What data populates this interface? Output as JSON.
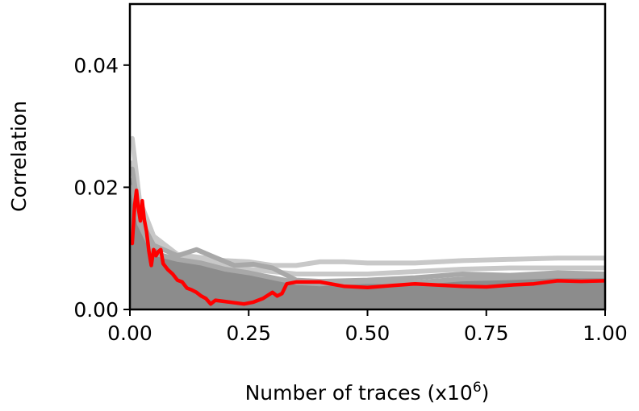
{
  "chart_data": {
    "type": "line",
    "title": "",
    "xlabel": "Number of traces (x10",
    "xlabel_sup": "6",
    "xlabel_close": ")",
    "ylabel": "Correlation",
    "xlim": [
      0.0,
      1.0
    ],
    "ylim": [
      0.0,
      0.05
    ],
    "xticks": [
      0.0,
      0.25,
      0.5,
      0.75,
      1.0
    ],
    "xtick_labels": [
      "0.00",
      "0.25",
      "0.50",
      "0.75",
      "1.00"
    ],
    "yticks": [
      0.0,
      0.02,
      0.04
    ],
    "ytick_labels": [
      "0.00",
      "0.02",
      "0.04"
    ],
    "grid": false,
    "colors": {
      "highlight": "#ff0000",
      "light_gray": "#c8c8c8",
      "mid_gray": "#a8a8a8",
      "band_fill": "#8c8c8c"
    },
    "series": [
      {
        "color": "#ff0000",
        "width": 4.5,
        "points": [
          [
            0.005,
            0.0108
          ],
          [
            0.01,
            0.017
          ],
          [
            0.014,
            0.0195
          ],
          [
            0.018,
            0.0165
          ],
          [
            0.022,
            0.0145
          ],
          [
            0.026,
            0.0178
          ],
          [
            0.03,
            0.0148
          ],
          [
            0.035,
            0.0128
          ],
          [
            0.04,
            0.0095
          ],
          [
            0.045,
            0.0072
          ],
          [
            0.05,
            0.0098
          ],
          [
            0.055,
            0.0088
          ],
          [
            0.06,
            0.0095
          ],
          [
            0.065,
            0.0098
          ],
          [
            0.07,
            0.0075
          ],
          [
            0.08,
            0.0065
          ],
          [
            0.09,
            0.0058
          ],
          [
            0.1,
            0.0048
          ],
          [
            0.11,
            0.0045
          ],
          [
            0.12,
            0.0035
          ],
          [
            0.13,
            0.0032
          ],
          [
            0.14,
            0.0028
          ],
          [
            0.15,
            0.0022
          ],
          [
            0.16,
            0.0018
          ],
          [
            0.17,
            0.0009
          ],
          [
            0.18,
            0.0015
          ],
          [
            0.2,
            0.0013
          ],
          [
            0.22,
            0.0011
          ],
          [
            0.24,
            0.0009
          ],
          [
            0.26,
            0.0012
          ],
          [
            0.28,
            0.0018
          ],
          [
            0.3,
            0.0028
          ],
          [
            0.31,
            0.0022
          ],
          [
            0.32,
            0.0026
          ],
          [
            0.33,
            0.0042
          ],
          [
            0.35,
            0.0045
          ],
          [
            0.4,
            0.0045
          ],
          [
            0.45,
            0.0038
          ],
          [
            0.5,
            0.0036
          ],
          [
            0.55,
            0.0039
          ],
          [
            0.6,
            0.0042
          ],
          [
            0.65,
            0.004
          ],
          [
            0.7,
            0.0038
          ],
          [
            0.75,
            0.0037
          ],
          [
            0.8,
            0.004
          ],
          [
            0.85,
            0.0042
          ],
          [
            0.9,
            0.0047
          ],
          [
            0.95,
            0.0046
          ],
          [
            1.0,
            0.0047
          ]
        ]
      },
      {
        "color": "#c8c8c8",
        "width": 6,
        "points": [
          [
            0.005,
            0.028
          ],
          [
            0.02,
            0.018
          ],
          [
            0.05,
            0.012
          ],
          [
            0.1,
            0.009
          ],
          [
            0.15,
            0.0085
          ],
          [
            0.2,
            0.008
          ],
          [
            0.25,
            0.0078
          ],
          [
            0.3,
            0.0072
          ],
          [
            0.35,
            0.0072
          ],
          [
            0.4,
            0.0078
          ],
          [
            0.45,
            0.0078
          ],
          [
            0.5,
            0.0076
          ],
          [
            0.6,
            0.0076
          ],
          [
            0.7,
            0.008
          ],
          [
            0.8,
            0.0082
          ],
          [
            0.9,
            0.0084
          ],
          [
            1.0,
            0.0084
          ]
        ]
      },
      {
        "color": "#c8c8c8",
        "width": 6,
        "points": [
          [
            0.005,
            0.024
          ],
          [
            0.02,
            0.016
          ],
          [
            0.05,
            0.011
          ],
          [
            0.1,
            0.0085
          ],
          [
            0.15,
            0.0078
          ],
          [
            0.2,
            0.0072
          ],
          [
            0.25,
            0.0066
          ],
          [
            0.3,
            0.0062
          ],
          [
            0.35,
            0.0058
          ],
          [
            0.4,
            0.0058
          ],
          [
            0.5,
            0.0058
          ],
          [
            0.6,
            0.0062
          ],
          [
            0.7,
            0.0066
          ],
          [
            0.8,
            0.0068
          ],
          [
            0.9,
            0.0068
          ],
          [
            1.0,
            0.0068
          ]
        ]
      },
      {
        "color": "#a8a8a8",
        "width": 6,
        "points": [
          [
            0.005,
            0.023
          ],
          [
            0.02,
            0.015
          ],
          [
            0.05,
            0.0105
          ],
          [
            0.1,
            0.0088
          ],
          [
            0.14,
            0.0098
          ],
          [
            0.18,
            0.0085
          ],
          [
            0.22,
            0.0072
          ],
          [
            0.26,
            0.0074
          ],
          [
            0.3,
            0.0068
          ],
          [
            0.35,
            0.0048
          ],
          [
            0.4,
            0.0046
          ],
          [
            0.5,
            0.0048
          ],
          [
            0.6,
            0.0052
          ],
          [
            0.7,
            0.0058
          ],
          [
            0.8,
            0.0056
          ],
          [
            0.9,
            0.006
          ],
          [
            1.0,
            0.0058
          ]
        ]
      },
      {
        "color": "#a8a8a8",
        "width": 6,
        "points": [
          [
            0.005,
            0.02
          ],
          [
            0.02,
            0.014
          ],
          [
            0.05,
            0.0092
          ],
          [
            0.1,
            0.0082
          ],
          [
            0.15,
            0.0076
          ],
          [
            0.2,
            0.0066
          ],
          [
            0.25,
            0.006
          ],
          [
            0.3,
            0.0052
          ],
          [
            0.35,
            0.0044
          ],
          [
            0.4,
            0.0042
          ],
          [
            0.5,
            0.0046
          ],
          [
            0.6,
            0.0044
          ],
          [
            0.7,
            0.005
          ],
          [
            0.8,
            0.0052
          ],
          [
            0.9,
            0.0055
          ],
          [
            1.0,
            0.0055
          ]
        ]
      }
    ],
    "band": {
      "color": "#8c8c8c",
      "points": [
        [
          0.0,
          0.021
        ],
        [
          0.01,
          0.0235
        ],
        [
          0.02,
          0.02
        ],
        [
          0.04,
          0.012
        ],
        [
          0.06,
          0.0095
        ],
        [
          0.08,
          0.0085
        ],
        [
          0.1,
          0.0082
        ],
        [
          0.15,
          0.0074
        ],
        [
          0.2,
          0.0064
        ],
        [
          0.25,
          0.0057
        ],
        [
          0.3,
          0.005
        ],
        [
          0.35,
          0.0042
        ],
        [
          0.4,
          0.0041
        ],
        [
          0.5,
          0.0045
        ],
        [
          0.6,
          0.0043
        ],
        [
          0.7,
          0.0048
        ],
        [
          0.8,
          0.005
        ],
        [
          0.9,
          0.0052
        ],
        [
          1.0,
          0.0052
        ]
      ]
    }
  }
}
